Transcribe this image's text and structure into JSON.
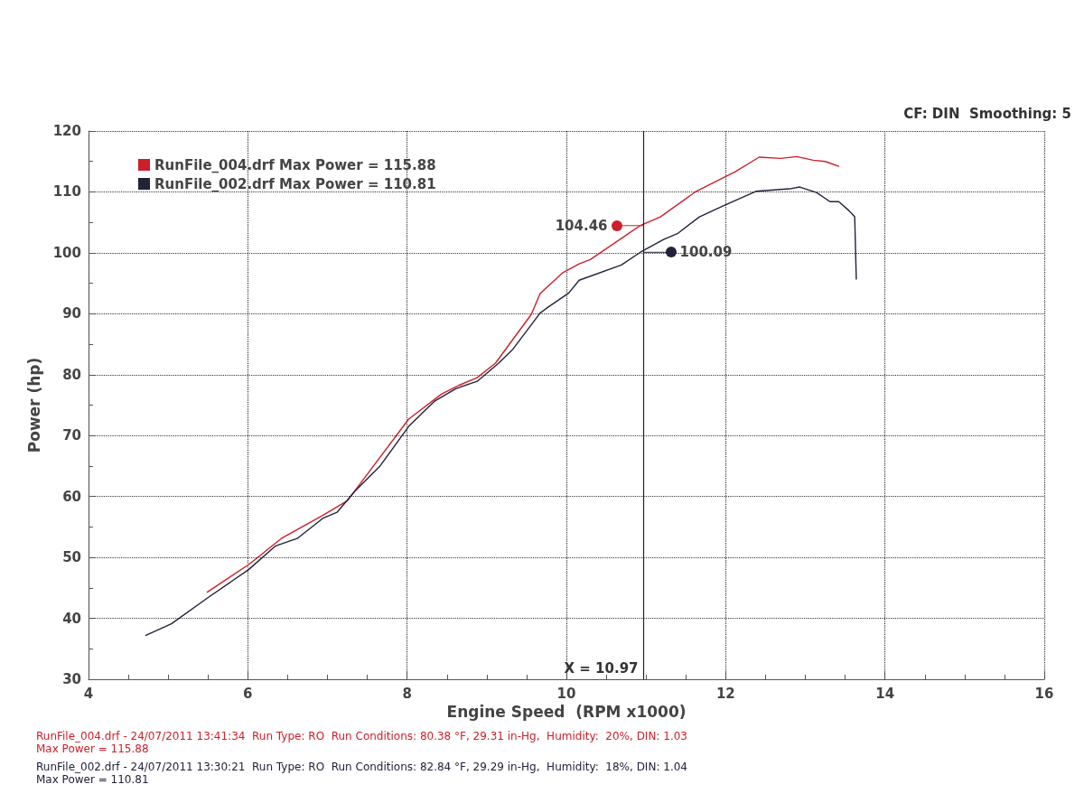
{
  "chart_data": {
    "type": "line",
    "xlabel": "Engine Speed  (RPM x1000)",
    "ylabel": "Power (hp)",
    "xlim": [
      4,
      16
    ],
    "xticks": [
      4,
      6,
      8,
      10,
      12,
      14,
      16
    ],
    "ylim": [
      30,
      120
    ],
    "yticks": [
      30,
      40,
      50,
      60,
      70,
      80,
      90,
      100,
      110,
      120
    ],
    "grid": true,
    "legend": "top left",
    "marker": "none",
    "line_style": "solid",
    "series": [
      {
        "name": "RunFile_004.drf Max Power = 115.88",
        "color": "#cc1f2a",
        "x": [
          5.49,
          6.02,
          6.42,
          6.94,
          7.25,
          8.02,
          8.43,
          8.66,
          8.88,
          9.11,
          9.56,
          9.67,
          9.95,
          10.16,
          10.3,
          10.93,
          11.18,
          11.63,
          12.12,
          12.42,
          12.69,
          12.89,
          13.1,
          13.25,
          13.42
        ],
        "values": [
          44.3,
          48.9,
          53.1,
          56.9,
          59.3,
          72.7,
          76.8,
          78.3,
          79.5,
          81.9,
          89.9,
          93.3,
          96.7,
          98.2,
          98.9,
          104.5,
          105.9,
          110.1,
          113.3,
          115.7,
          115.5,
          115.8,
          115.2,
          115.0,
          114.2
        ]
      },
      {
        "name": "RunFile_002.drf Max Power = 110.81",
        "color": "#22223a",
        "x": [
          4.72,
          5.04,
          5.49,
          6.01,
          6.35,
          6.62,
          6.94,
          7.12,
          7.34,
          7.66,
          8.02,
          8.34,
          8.61,
          8.88,
          9.15,
          9.33,
          9.67,
          9.74,
          10.03,
          10.16,
          10.69,
          10.93,
          11.22,
          11.4,
          11.67,
          11.97,
          12.38,
          12.8,
          12.93,
          13.14,
          13.31,
          13.42,
          13.55,
          13.62,
          13.64
        ],
        "values": [
          37.2,
          39.1,
          43.3,
          48.0,
          51.9,
          53.1,
          56.4,
          57.4,
          60.8,
          65.0,
          71.5,
          75.6,
          77.7,
          78.9,
          81.9,
          84.2,
          90.1,
          90.8,
          93.4,
          95.5,
          98.0,
          100.1,
          102.2,
          103.2,
          105.9,
          107.7,
          110.1,
          110.5,
          110.8,
          109.9,
          108.4,
          108.4,
          106.9,
          105.9,
          95.7
        ]
      }
    ],
    "ref_lines": [
      {
        "axis": "x",
        "value": 10.97,
        "label": "X = 10.97"
      }
    ],
    "annotations": [
      {
        "text": "104.46",
        "x": 10.97,
        "y": 104.46
      },
      {
        "text": "100.09",
        "x": 10.97,
        "y": 100.09
      },
      "CF: DIN  Smoothing: 5",
      "RunFile_004.drf - 24/07/2011 13:41:34  Run Type: RO  Run Conditions: 80.38 °F, 29.31 in-Hg,  Humidity:  20%, DIN: 1.03\nMax Power = 115.88",
      "RunFile_002.drf - 24/07/2011 13:30:21  Run Type: RO  Run Conditions: 82.84 °F, 29.29 in-Hg,  Humidity:  18%, DIN: 1.04\nMax Power = 110.81"
    ]
  }
}
